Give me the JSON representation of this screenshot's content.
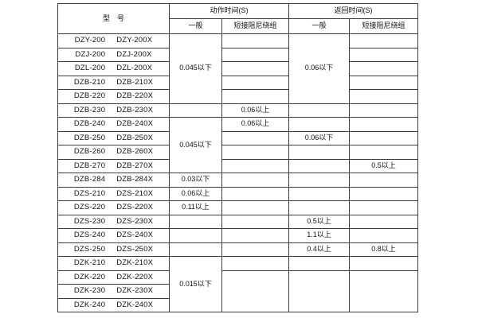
{
  "colors": {
    "background": "#ffffff",
    "border": "#3c3c3c",
    "text": "#111111"
  },
  "table": {
    "header": {
      "model": "型　号",
      "action_time": "动作时间(S)",
      "return_time": "返回时间(S)",
      "general_1": "一般",
      "damping_1": "短接阻尼绕组",
      "general_2": "一般",
      "damping_2": "短接阻尼绕组"
    },
    "rows": [
      {
        "a": "DZY-200",
        "b": "DZY-200X"
      },
      {
        "a": "DZJ-200",
        "b": "DZJ-200X"
      },
      {
        "a": "DZL-200",
        "b": "DZL-200X"
      },
      {
        "a": "DZB-210",
        "b": "DZB-210X"
      },
      {
        "a": "DZB-220",
        "b": "DZB-220X"
      },
      {
        "a": "DZB-230",
        "b": "DZB-230X"
      },
      {
        "a": "DZB-240",
        "b": "DZB-240X"
      },
      {
        "a": "DZB-250",
        "b": "DZB-250X"
      },
      {
        "a": "DZB-260",
        "b": "DZB-260X"
      },
      {
        "a": "DZB-270",
        "b": "DZB-270X"
      },
      {
        "a": "DZB-284",
        "b": "DZB-284X"
      },
      {
        "a": "DZS-210",
        "b": "DZS-210X"
      },
      {
        "a": "DZS-220",
        "b": "DZS-220X"
      },
      {
        "a": "DZS-230",
        "b": "DZS-230X"
      },
      {
        "a": "DZS-240",
        "b": "DZS-240X"
      },
      {
        "a": "DZS-250",
        "b": "DZS-250X"
      },
      {
        "a": "DZK-210",
        "b": "DZK-210X"
      },
      {
        "a": "DZK-220",
        "b": "DZK-220X"
      },
      {
        "a": "DZK-230",
        "b": "DZK-230X"
      },
      {
        "a": "DZK-240",
        "b": "DZK-240X"
      }
    ],
    "values": {
      "act_gen_r1_5": "0.045以下",
      "act_gen_r7_10": "0.045以下",
      "act_gen_r11": "0.03以下",
      "act_gen_r12": "0.06以上",
      "act_gen_r13": "0.11以上",
      "act_gen_r17_20": "0.015以下",
      "act_damp_r6": "0.06以上",
      "act_damp_r7": "0.06以上",
      "ret_gen_r1_5": "0.06以下",
      "ret_gen_r8": "0.06以下",
      "ret_gen_r14": "0.5以上",
      "ret_gen_r15": "1.1以上",
      "ret_gen_r16": "0.4以上",
      "ret_damp_r10": "0.5以上",
      "ret_damp_r16": "0.8以上"
    }
  }
}
